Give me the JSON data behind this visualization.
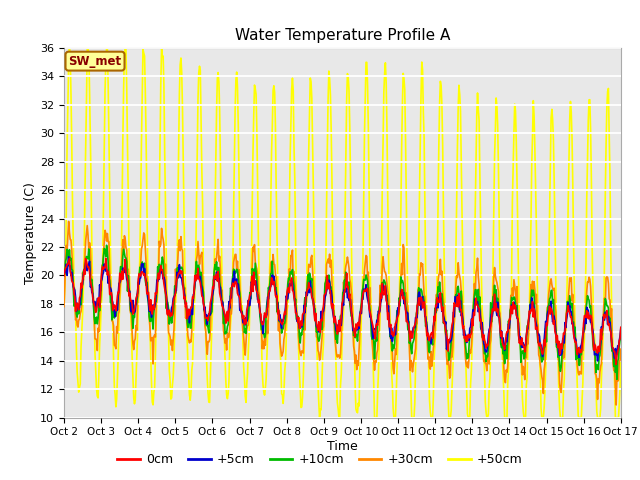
{
  "title": "Water Temperature Profile A",
  "xlabel": "Time",
  "ylabel": "Temperature (C)",
  "ylim": [
    10,
    36
  ],
  "yticks": [
    10,
    12,
    14,
    16,
    18,
    20,
    22,
    24,
    26,
    28,
    30,
    32,
    34,
    36
  ],
  "annotation_text": "SW_met",
  "annotation_bg": "#FFFF99",
  "annotation_border": "#AA6600",
  "annotation_text_color": "#880000",
  "plot_bg": "#E8E8E8",
  "line_colors": {
    "0cm": "#FF0000",
    "+5cm": "#0000CC",
    "+10cm": "#00BB00",
    "+30cm": "#FF8800",
    "+50cm": "#FFFF00"
  },
  "lw": 1.2,
  "n_points": 720,
  "x_start": 2,
  "x_end": 17,
  "xtick_positions": [
    2,
    3,
    4,
    5,
    6,
    7,
    8,
    9,
    10,
    11,
    12,
    13,
    14,
    15,
    16,
    17
  ],
  "xtick_labels": [
    "Oct 2",
    "Oct 3",
    "Oct 4",
    "Oct 5",
    "Oct 6",
    "Oct 7",
    "Oct 8",
    "Oct 9",
    "Oct 10",
    "Oct 11",
    "Oct 12",
    "Oct 13",
    "Oct 14",
    "Oct 15",
    "Oct 16",
    "Oct 17"
  ],
  "legend_labels": [
    "0cm",
    "+5cm",
    "+10cm",
    "+30cm",
    "+50cm"
  ],
  "legend_colors": [
    "#FF0000",
    "#0000CC",
    "#00BB00",
    "#FF8800",
    "#FFFF00"
  ],
  "figsize": [
    6.4,
    4.8
  ],
  "dpi": 100
}
